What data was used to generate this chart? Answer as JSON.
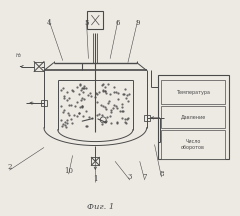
{
  "bg_color": "#ede9e3",
  "line_color": "#4a4a4a",
  "title": "Фиг. 1",
  "box_labels": [
    "Температура",
    "Давление",
    "Число\nоборотов"
  ],
  "h2_label": "H",
  "fig_width": 2.4,
  "fig_height": 2.16,
  "dpi": 100
}
